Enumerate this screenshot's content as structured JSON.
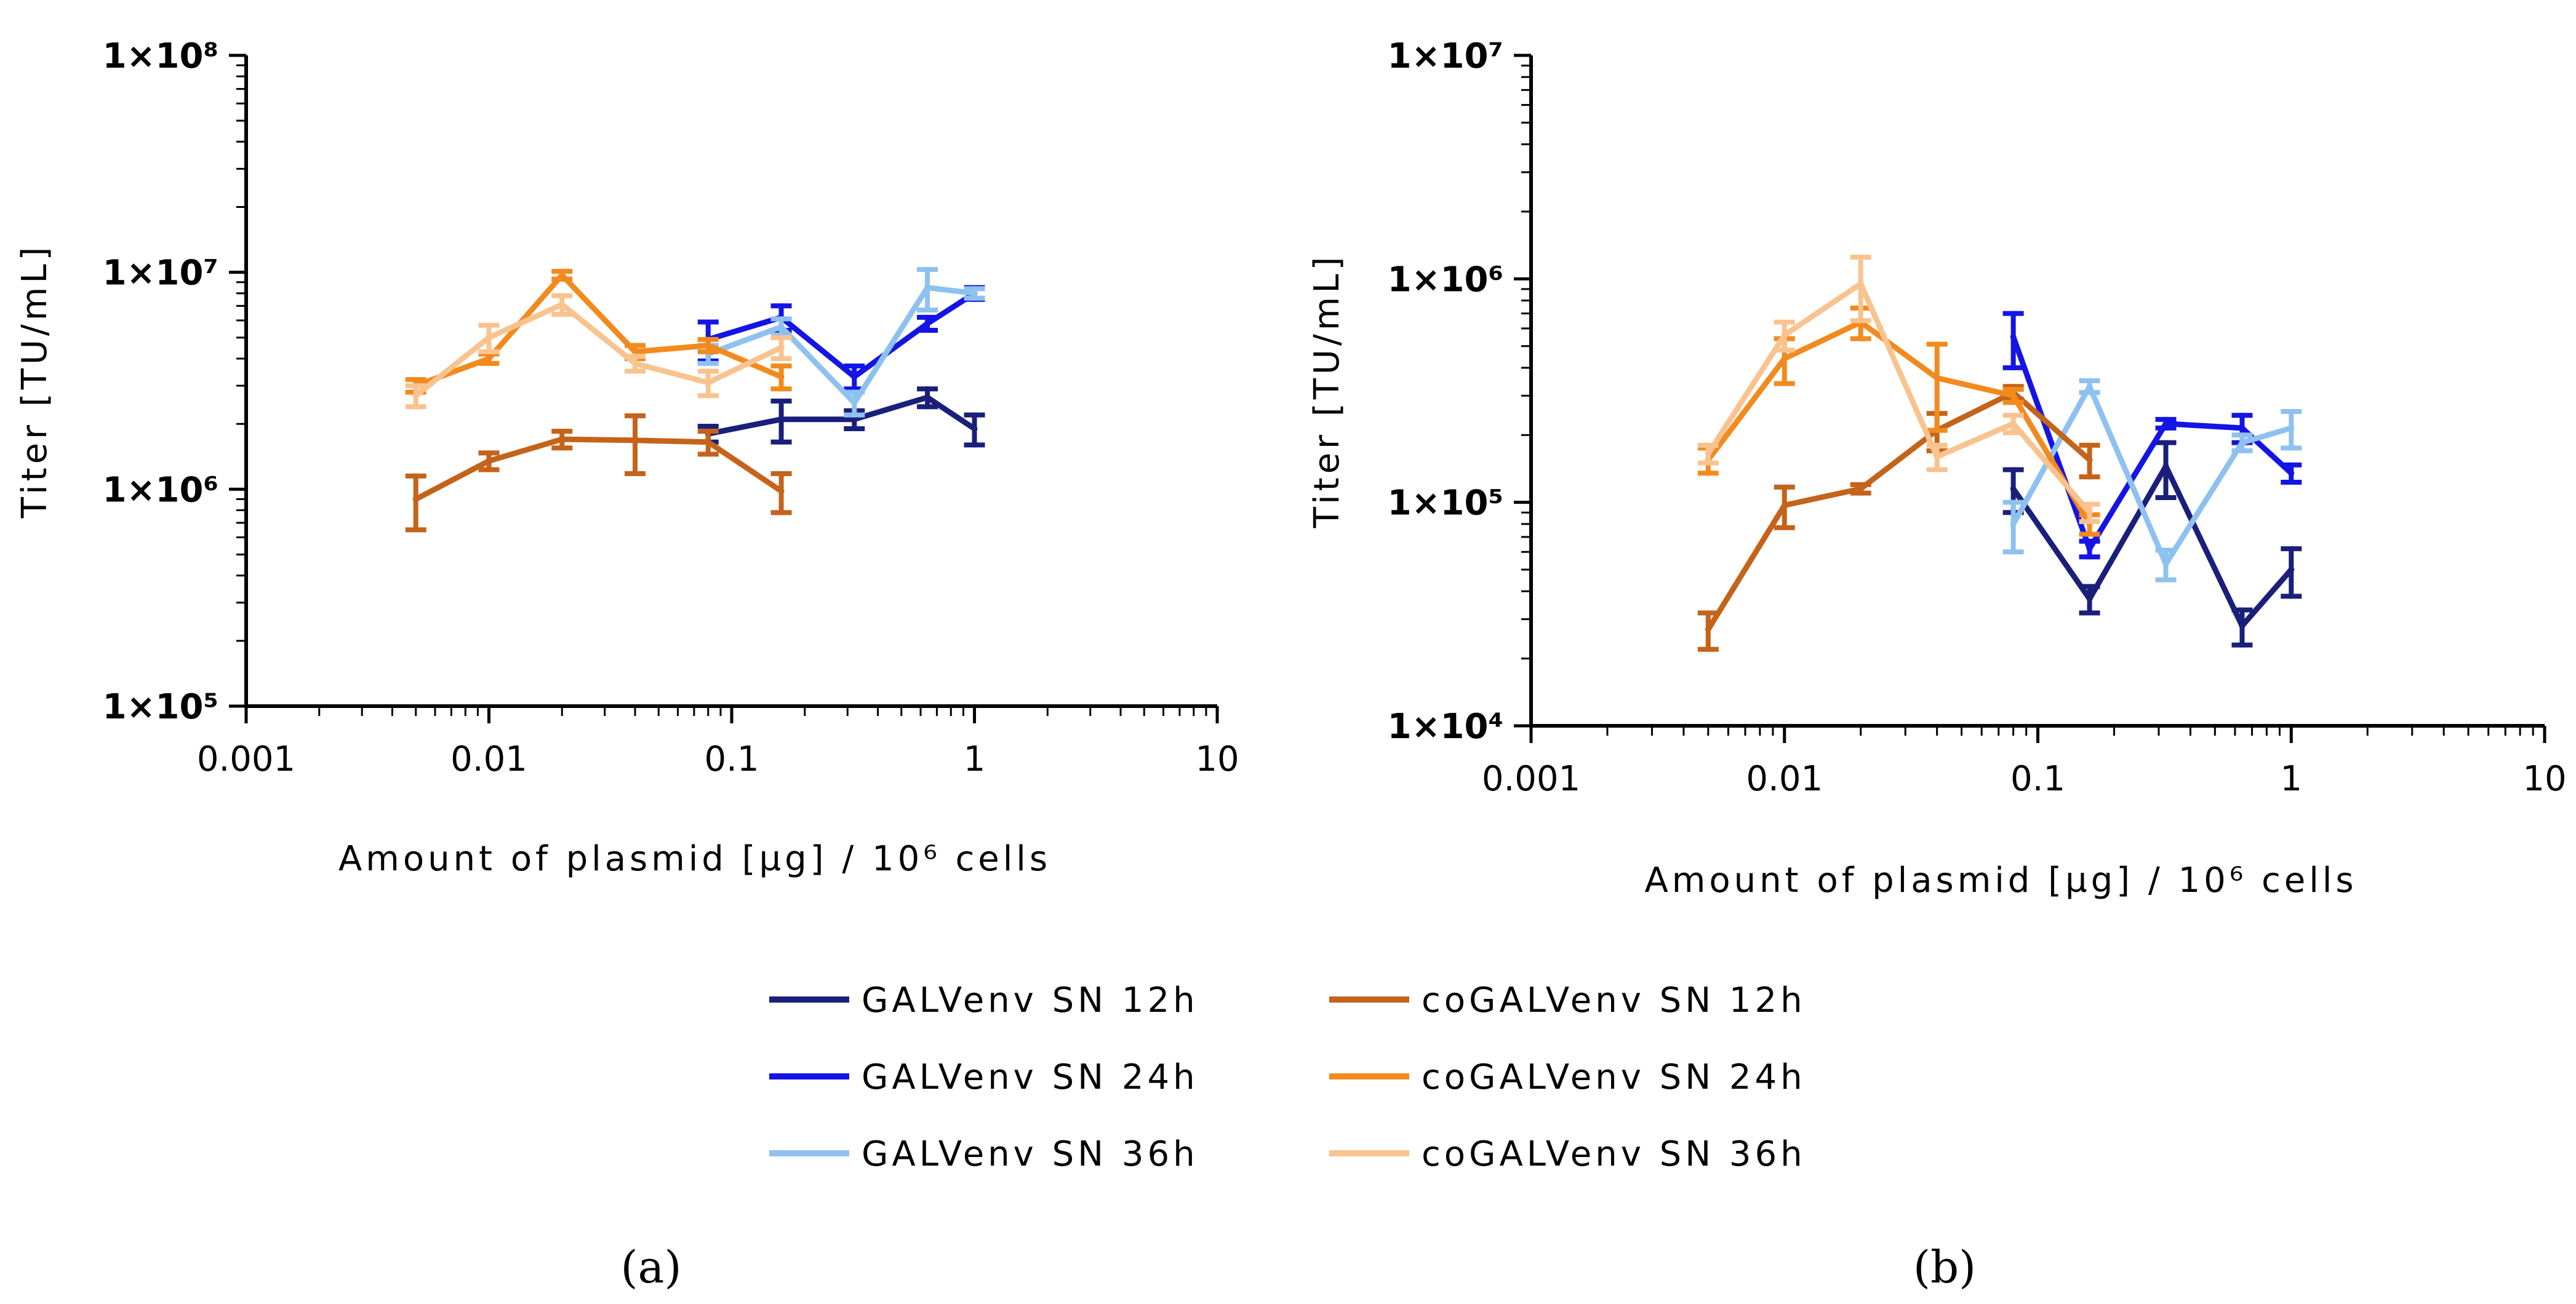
{
  "colors": {
    "GALV_12": "#1a1f7a",
    "GALV_24": "#1414e6",
    "GALV_36": "#8ec1ef",
    "coGALV_12": "#c4631a",
    "coGALV_24": "#f28a1e",
    "coGALV_36": "#f9c38f"
  },
  "legend": [
    {
      "key": "GALV_12",
      "label": "GALVenv SN 12h"
    },
    {
      "key": "GALV_24",
      "label": "GALVenv SN 24h"
    },
    {
      "key": "GALV_36",
      "label": "GALVenv SN 36h"
    },
    {
      "key": "coGALV_12",
      "label": "coGALVenv SN 12h"
    },
    {
      "key": "coGALV_24",
      "label": "coGALVenv SN 24h"
    },
    {
      "key": "coGALV_36",
      "label": "coGALVenv SN 36h"
    }
  ],
  "chart_data": [
    {
      "type": "line",
      "panel_label": "(a)",
      "xlabel": "Amount of plasmid [µg] / 10⁶ cells",
      "ylabel": "Titer [TU/mL]",
      "xscale": "log",
      "yscale": "log",
      "xlim": [
        0.001,
        10
      ],
      "ylim": [
        100000,
        100000000
      ],
      "xtick_labels": [
        "0.001",
        "0.01",
        "0.1",
        "1",
        "10"
      ],
      "ytick_labels": [
        "1×10⁵",
        "1×10⁶",
        "1×10⁷",
        "1×10⁸"
      ],
      "series": [
        {
          "key": "GALV_12",
          "x": [
            0.08,
            0.16,
            0.32,
            0.64,
            1.0
          ],
          "y": [
            1800000,
            2100000,
            2100000,
            2650000,
            1900000
          ],
          "err": [
            150000,
            450000,
            200000,
            250000,
            300000
          ]
        },
        {
          "key": "GALV_24",
          "x": [
            0.08,
            0.16,
            0.32,
            0.64,
            1.0
          ],
          "y": [
            4900000,
            6200000,
            3300000,
            5800000,
            8000000
          ],
          "err": [
            1000000,
            800000,
            400000,
            400000,
            500000
          ]
        },
        {
          "key": "GALV_36",
          "x": [
            0.08,
            0.16,
            0.32,
            0.64,
            1.0
          ],
          "y": [
            4200000,
            5600000,
            2500000,
            8500000,
            8000000
          ],
          "err": [
            400000,
            500000,
            300000,
            1800000,
            400000
          ]
        },
        {
          "key": "coGALV_12",
          "x": [
            0.005,
            0.01,
            0.02,
            0.04,
            0.08,
            0.16
          ],
          "y": [
            900000,
            1350000,
            1700000,
            1680000,
            1650000,
            980000
          ],
          "err": [
            250000,
            120000,
            150000,
            500000,
            200000,
            200000
          ]
        },
        {
          "key": "coGALV_24",
          "x": [
            0.005,
            0.01,
            0.02,
            0.04,
            0.08,
            0.16
          ],
          "y": [
            3000000,
            4000000,
            9700000,
            4300000,
            4600000,
            3300000
          ],
          "err": [
            200000,
            200000,
            400000,
            300000,
            300000,
            400000
          ]
        },
        {
          "key": "coGALV_36",
          "x": [
            0.005,
            0.01,
            0.02,
            0.04,
            0.08,
            0.16
          ],
          "y": [
            2700000,
            5000000,
            7100000,
            3800000,
            3100000,
            4500000
          ],
          "err": [
            300000,
            700000,
            700000,
            300000,
            400000,
            500000
          ]
        }
      ]
    },
    {
      "type": "line",
      "panel_label": "(b)",
      "xlabel": "Amount of plasmid [µg] / 10⁶ cells",
      "ylabel": "Titer [TU/mL]",
      "xscale": "log",
      "yscale": "log",
      "xlim": [
        0.001,
        10
      ],
      "ylim": [
        10000,
        10000000
      ],
      "xtick_labels": [
        "0.001",
        "0.01",
        "0.1",
        "1",
        "10"
      ],
      "ytick_labels": [
        "1×10⁴",
        "1×10⁵",
        "1×10⁶",
        "1×10⁷"
      ],
      "series": [
        {
          "key": "GALV_12",
          "x": [
            0.08,
            0.16,
            0.32,
            0.64,
            1.0
          ],
          "y": [
            115000,
            37000,
            145000,
            28000,
            50000
          ],
          "err": [
            25000,
            5000,
            40000,
            5000,
            12000
          ]
        },
        {
          "key": "GALV_24",
          "x": [
            0.08,
            0.16,
            0.32,
            0.64,
            1.0
          ],
          "y": [
            550000,
            62000,
            225000,
            215000,
            135000
          ],
          "err": [
            150000,
            5000,
            10000,
            30000,
            12000
          ]
        },
        {
          "key": "GALV_36",
          "x": [
            0.08,
            0.16,
            0.32,
            0.64,
            1.0
          ],
          "y": [
            80000,
            330000,
            53000,
            185000,
            215000
          ],
          "err": [
            20000,
            20000,
            8000,
            15000,
            40000
          ]
        },
        {
          "key": "coGALV_12",
          "x": [
            0.005,
            0.01,
            0.02,
            0.04,
            0.08,
            0.16
          ],
          "y": [
            27000,
            97000,
            115000,
            210000,
            310000,
            155000
          ],
          "err": [
            5000,
            20000,
            5000,
            40000,
            20000,
            25000
          ]
        },
        {
          "key": "coGALV_24",
          "x": [
            0.005,
            0.01,
            0.02,
            0.04,
            0.08,
            0.16
          ],
          "y": [
            155000,
            440000,
            640000,
            360000,
            300000,
            80000
          ],
          "err": [
            20000,
            100000,
            100000,
            150000,
            20000,
            8000
          ]
        },
        {
          "key": "coGALV_36",
          "x": [
            0.005,
            0.01,
            0.02,
            0.04,
            0.08,
            0.16
          ],
          "y": [
            165000,
            560000,
            950000,
            160000,
            225000,
            90000
          ],
          "err": [
            15000,
            80000,
            300000,
            20000,
            20000,
            8000
          ]
        }
      ]
    }
  ]
}
